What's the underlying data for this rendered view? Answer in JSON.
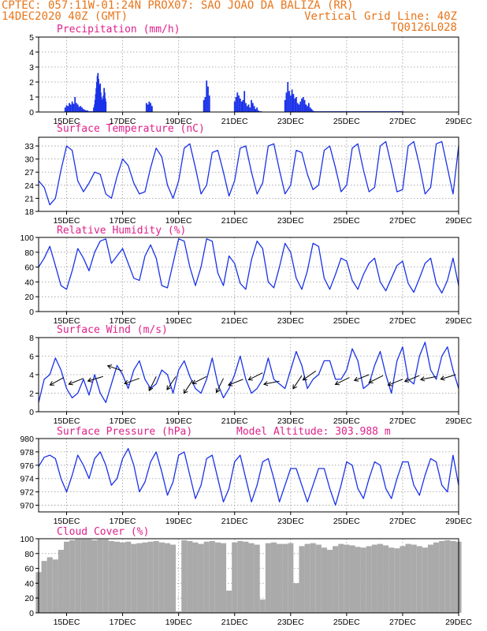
{
  "header": {
    "line1": "CPTEC:  057:11W-01:24N  PROX07: SAO JOAO DA BALIZA (RR)",
    "date": "14DEC2020 40Z (GMT)",
    "grid_note": "Vertical Grid Line: 40Z",
    "model": "TQ0126L028"
  },
  "colors": {
    "header": "#e8751a",
    "title": "#e0208a",
    "series": "#1a32e8",
    "cloud": "#aaaaaa",
    "grid": "#999999"
  },
  "x_axis": {
    "start_day": 14,
    "end_day": 29,
    "tick_days": [
      15,
      17,
      19,
      21,
      23,
      25,
      27,
      29
    ],
    "tick_labels": [
      "15DEC",
      "17DEC",
      "19DEC",
      "21DEC",
      "23DEC",
      "25DEC",
      "27DEC",
      "29DEC"
    ]
  },
  "chart_data": [
    {
      "id": "precip",
      "type": "bar",
      "title": "Precipitation (mm/h)",
      "ylim": [
        0,
        5
      ],
      "yticks": [
        0,
        1,
        2,
        3,
        4,
        5
      ],
      "x": [
        14.95,
        15.0,
        15.05,
        15.1,
        15.15,
        15.2,
        15.25,
        15.3,
        15.35,
        15.4,
        15.45,
        15.5,
        15.55,
        15.6,
        15.65,
        15.7,
        15.75,
        15.8,
        15.85,
        15.9,
        15.95,
        15.97,
        16.0,
        16.02,
        16.04,
        16.06,
        16.08,
        16.1,
        16.12,
        16.14,
        16.16,
        16.18,
        16.2,
        16.22,
        16.24,
        16.26,
        16.28,
        16.3,
        16.32,
        16.34,
        16.36,
        16.38,
        16.4,
        17.85,
        17.9,
        17.95,
        18.0,
        18.05,
        19.9,
        19.95,
        20.0,
        20.05,
        20.1,
        21.0,
        21.05,
        21.1,
        21.15,
        21.2,
        21.25,
        21.3,
        21.35,
        21.4,
        21.45,
        21.5,
        21.55,
        21.6,
        21.65,
        21.7,
        21.75,
        21.8,
        21.85,
        21.9,
        21.95,
        22.0,
        22.8,
        22.85,
        22.9,
        22.95,
        23.0,
        23.05,
        23.1,
        23.15,
        23.2,
        23.25,
        23.3,
        23.35,
        23.4,
        23.45,
        23.5,
        23.55,
        23.6,
        23.65,
        23.7,
        23.75,
        23.8,
        23.85,
        23.9,
        23.95,
        24.0,
        24.05,
        24.1,
        24.15,
        24.2,
        24.25,
        24.3,
        24.35,
        24.4,
        24.45,
        24.5,
        24.55,
        24.6,
        24.65,
        24.7,
        24.75,
        24.8,
        24.85,
        24.9,
        24.95,
        25.0,
        25.05,
        25.1,
        25.15,
        25.2,
        25.25,
        25.3,
        25.35,
        25.4,
        25.45,
        25.5,
        25.55,
        25.6,
        25.65,
        25.7,
        25.75,
        25.8,
        25.85,
        25.9,
        25.95,
        26.0,
        26.05,
        26.1,
        26.15,
        26.2,
        26.25,
        26.3,
        26.35,
        26.4,
        26.45,
        26.5,
        26.55,
        26.6,
        26.65,
        26.7,
        26.75,
        26.8,
        26.85,
        26.9,
        26.95,
        27.0
      ],
      "values": [
        0.3,
        0.45,
        0.4,
        0.6,
        0.5,
        0.7,
        0.55,
        1.0,
        0.6,
        0.5,
        0.35,
        0.4,
        0.3,
        0.2,
        0.15,
        0.1,
        0.1,
        0.05,
        0.05,
        0.05,
        0.05,
        0.3,
        0.5,
        0.8,
        1.2,
        1.6,
        2.0,
        2.4,
        2.6,
        2.2,
        1.8,
        1.5,
        1.9,
        1.3,
        1.0,
        0.8,
        0.6,
        0.9,
        1.1,
        1.6,
        1.3,
        0.9,
        0.7,
        0.6,
        0.5,
        0.7,
        0.6,
        0.4,
        0.8,
        1.0,
        2.1,
        1.7,
        1.1,
        0.7,
        1.0,
        1.3,
        1.1,
        0.9,
        0.7,
        0.8,
        1.4,
        0.6,
        0.4,
        0.5,
        0.3,
        0.8,
        0.6,
        0.4,
        0.2,
        0.3,
        0.1,
        0.05,
        0.05,
        0.0,
        0.8,
        1.3,
        2.0,
        1.4,
        1.1,
        1.5,
        1.2,
        0.9,
        1.0,
        0.6,
        0.5,
        0.7,
        0.9,
        1.0,
        0.8,
        0.5,
        0.4,
        0.6,
        0.3,
        0.2,
        0.1,
        0.05,
        0.05,
        0.05,
        0.05,
        0.05,
        0.05,
        0.05,
        0.05,
        0.05,
        0.05,
        0.05,
        0.05,
        0.05,
        0.05,
        0.05,
        0.05,
        0.05,
        0.05,
        0.05,
        0.05,
        0.05,
        0.05,
        0.05,
        0.05,
        0.05,
        0.05,
        0.05,
        0.05,
        0.05,
        0.05,
        0.05,
        0.05,
        0.05,
        0.05,
        0.05,
        0.05,
        0.05,
        0.05,
        0.05,
        0.05,
        0.05,
        0.05,
        0.05,
        0.05,
        0.05,
        0.05,
        0.05,
        0.05,
        0.05,
        0.05,
        0.05,
        0.05,
        0.05,
        0.05,
        0.05,
        0.05,
        0.05,
        0.05,
        0.05,
        0.05,
        0.05,
        0.05,
        0.05,
        0.05
      ]
    },
    {
      "id": "temperature",
      "type": "line",
      "title": "Surface Temperature (nC)",
      "ylim": [
        18,
        35
      ],
      "yticks": [
        18,
        21,
        24,
        27,
        30,
        33
      ],
      "x": [
        14.0,
        14.2,
        14.4,
        14.6,
        14.8,
        15.0,
        15.2,
        15.4,
        15.6,
        15.8,
        16.0,
        16.2,
        16.4,
        16.6,
        16.8,
        17.0,
        17.2,
        17.4,
        17.6,
        17.8,
        18.0,
        18.2,
        18.4,
        18.6,
        18.8,
        19.0,
        19.2,
        19.4,
        19.6,
        19.8,
        20.0,
        20.2,
        20.4,
        20.6,
        20.8,
        21.0,
        21.2,
        21.4,
        21.6,
        21.8,
        22.0,
        22.2,
        22.4,
        22.6,
        22.8,
        23.0,
        23.2,
        23.4,
        23.6,
        23.8,
        24.0,
        24.2,
        24.4,
        24.6,
        24.8,
        25.0,
        25.2,
        25.4,
        25.6,
        25.8,
        26.0,
        26.2,
        26.4,
        26.6,
        26.8,
        27.0,
        27.2,
        27.4,
        27.6,
        27.8,
        28.0,
        28.2,
        28.4,
        28.6,
        28.8,
        29.0
      ],
      "values": [
        25.0,
        23.5,
        19.5,
        21.0,
        27.5,
        33.0,
        32.0,
        25.0,
        22.5,
        24.5,
        27.0,
        26.5,
        22.0,
        21.0,
        26.0,
        30.0,
        28.5,
        24.5,
        22.0,
        22.5,
        28.0,
        32.5,
        30.5,
        24.0,
        21.0,
        25.0,
        32.5,
        33.5,
        28.0,
        22.0,
        24.0,
        31.5,
        32.0,
        27.0,
        21.5,
        25.0,
        32.5,
        33.0,
        27.0,
        22.0,
        24.5,
        33.0,
        33.5,
        27.5,
        22.0,
        24.0,
        32.0,
        31.5,
        26.5,
        23.0,
        24.0,
        32.0,
        33.0,
        28.0,
        22.5,
        24.0,
        32.5,
        33.5,
        27.5,
        22.5,
        23.5,
        33.0,
        34.0,
        28.5,
        22.5,
        23.0,
        33.0,
        34.0,
        28.5,
        22.0,
        23.5,
        33.5,
        34.0,
        28.0,
        22.0,
        33.0
      ]
    },
    {
      "id": "humidity",
      "type": "line",
      "title": "Relative Humidity (%)",
      "ylim": [
        0,
        100
      ],
      "yticks": [
        0,
        20,
        40,
        60,
        80,
        100
      ],
      "x": [
        14.0,
        14.2,
        14.4,
        14.6,
        14.8,
        15.0,
        15.2,
        15.4,
        15.6,
        15.8,
        16.0,
        16.2,
        16.4,
        16.6,
        16.8,
        17.0,
        17.2,
        17.4,
        17.6,
        17.8,
        18.0,
        18.2,
        18.4,
        18.6,
        18.8,
        19.0,
        19.2,
        19.4,
        19.6,
        19.8,
        20.0,
        20.2,
        20.4,
        20.6,
        20.8,
        21.0,
        21.2,
        21.4,
        21.6,
        21.8,
        22.0,
        22.2,
        22.4,
        22.6,
        22.8,
        23.0,
        23.2,
        23.4,
        23.6,
        23.8,
        24.0,
        24.2,
        24.4,
        24.6,
        24.8,
        25.0,
        25.2,
        25.4,
        25.6,
        25.8,
        26.0,
        26.2,
        26.4,
        26.6,
        26.8,
        27.0,
        27.2,
        27.4,
        27.6,
        27.8,
        28.0,
        28.2,
        28.4,
        28.6,
        28.8,
        29.0
      ],
      "values": [
        60.0,
        72.0,
        88.0,
        62.0,
        35.0,
        30.0,
        55.0,
        85.0,
        72.0,
        55.0,
        80.0,
        95.0,
        98.0,
        65.0,
        75.0,
        85.0,
        65.0,
        45.0,
        42.0,
        75.0,
        90.0,
        72.0,
        35.0,
        32.0,
        65.0,
        98.0,
        95.0,
        60.0,
        35.0,
        60.0,
        98.0,
        95.0,
        52.0,
        35.0,
        75.0,
        65.0,
        38.0,
        30.0,
        70.0,
        95.0,
        85.0,
        40.0,
        32.0,
        60.0,
        92.0,
        80.0,
        45.0,
        30.0,
        55.0,
        92.0,
        88.0,
        45.0,
        30.0,
        50.0,
        72.0,
        68.0,
        42.0,
        30.0,
        50.0,
        65.0,
        72.0,
        40.0,
        28.0,
        45.0,
        62.0,
        68.0,
        38.0,
        26.0,
        45.0,
        65.0,
        72.0,
        38.0,
        25.0,
        42.0,
        72.0,
        35.0
      ]
    },
    {
      "id": "wind",
      "type": "line",
      "title": "Surface Wind (m/s)",
      "ylim": [
        0,
        8
      ],
      "yticks": [
        0,
        2,
        4,
        6,
        8
      ],
      "x": [
        14.0,
        14.2,
        14.4,
        14.6,
        14.8,
        15.0,
        15.2,
        15.4,
        15.6,
        15.8,
        16.0,
        16.2,
        16.4,
        16.6,
        16.8,
        17.0,
        17.2,
        17.4,
        17.6,
        17.8,
        18.0,
        18.2,
        18.4,
        18.6,
        18.8,
        19.0,
        19.2,
        19.4,
        19.6,
        19.8,
        20.0,
        20.2,
        20.4,
        20.6,
        20.8,
        21.0,
        21.2,
        21.4,
        21.6,
        21.8,
        22.0,
        22.2,
        22.4,
        22.6,
        22.8,
        23.0,
        23.2,
        23.4,
        23.6,
        23.8,
        24.0,
        24.2,
        24.4,
        24.6,
        24.8,
        25.0,
        25.2,
        25.4,
        25.6,
        25.8,
        26.0,
        26.2,
        26.4,
        26.6,
        26.8,
        27.0,
        27.2,
        27.4,
        27.6,
        27.8,
        28.0,
        28.2,
        28.4,
        28.6,
        28.8,
        29.0
      ],
      "values": [
        1.0,
        3.5,
        4.0,
        5.8,
        4.5,
        2.5,
        1.5,
        2.0,
        3.5,
        1.8,
        4.0,
        2.0,
        1.0,
        3.0,
        5.0,
        4.0,
        2.5,
        4.5,
        5.5,
        3.5,
        2.5,
        3.0,
        4.5,
        4.0,
        2.0,
        4.5,
        5.5,
        3.8,
        2.5,
        2.0,
        3.5,
        5.8,
        3.0,
        1.5,
        2.5,
        4.0,
        6.0,
        3.5,
        2.0,
        2.5,
        3.5,
        5.8,
        3.5,
        3.0,
        2.5,
        4.5,
        6.5,
        5.0,
        2.5,
        3.5,
        4.0,
        5.5,
        5.5,
        3.5,
        3.5,
        4.5,
        6.8,
        5.5,
        2.5,
        3.0,
        5.0,
        6.5,
        4.0,
        2.0,
        5.5,
        7.0,
        3.5,
        3.0,
        6.0,
        7.5,
        4.5,
        3.5,
        6.0,
        7.0,
        4.5,
        2.5
      ],
      "arrows": [
        {
          "x": 14.9,
          "y": 3.7,
          "dx": -1,
          "dy": -0.55
        },
        {
          "x": 15.6,
          "y": 3.6,
          "dx": -1,
          "dy": -0.4
        },
        {
          "x": 16.3,
          "y": 3.8,
          "dx": -1,
          "dy": -0.3
        },
        {
          "x": 17.0,
          "y": 4.4,
          "dx": -1,
          "dy": 0.35
        },
        {
          "x": 17.6,
          "y": 3.6,
          "dx": -1,
          "dy": -0.35
        },
        {
          "x": 18.2,
          "y": 3.8,
          "dx": -0.5,
          "dy": -1
        },
        {
          "x": 18.9,
          "y": 3.8,
          "dx": -0.6,
          "dy": -0.9
        },
        {
          "x": 19.5,
          "y": 3.4,
          "dx": -0.6,
          "dy": -0.9
        },
        {
          "x": 20.0,
          "y": 3.8,
          "dx": -1,
          "dy": -0.5
        },
        {
          "x": 20.6,
          "y": 3.6,
          "dx": -0.5,
          "dy": -1
        },
        {
          "x": 21.3,
          "y": 3.5,
          "dx": -1,
          "dy": -0.4
        },
        {
          "x": 22.0,
          "y": 4.2,
          "dx": -1,
          "dy": -0.5
        },
        {
          "x": 22.6,
          "y": 3.3,
          "dx": -1,
          "dy": -0.2
        },
        {
          "x": 23.4,
          "y": 3.9,
          "dx": -0.6,
          "dy": -0.9
        },
        {
          "x": 23.9,
          "y": 4.4,
          "dx": -1,
          "dy": -0.7
        },
        {
          "x": 25.1,
          "y": 3.7,
          "dx": -1,
          "dy": -0.5
        },
        {
          "x": 25.8,
          "y": 4.0,
          "dx": -1,
          "dy": -0.4
        },
        {
          "x": 26.3,
          "y": 3.9,
          "dx": -1,
          "dy": -0.5
        },
        {
          "x": 27.0,
          "y": 3.5,
          "dx": -1,
          "dy": -0.4
        },
        {
          "x": 27.6,
          "y": 3.9,
          "dx": -1,
          "dy": -0.4
        },
        {
          "x": 28.2,
          "y": 3.8,
          "dx": -1,
          "dy": -0.2
        },
        {
          "x": 28.9,
          "y": 4.0,
          "dx": -1,
          "dy": -0.3
        }
      ]
    },
    {
      "id": "pressure",
      "type": "line",
      "title": "Surface Pressure (hPa)",
      "subtitle": "Model Altitude: 303.988 m",
      "ylim": [
        969,
        980
      ],
      "yticks": [
        970,
        972,
        974,
        976,
        978,
        980
      ],
      "x": [
        14.0,
        14.2,
        14.4,
        14.6,
        14.8,
        15.0,
        15.2,
        15.4,
        15.6,
        15.8,
        16.0,
        16.2,
        16.4,
        16.6,
        16.8,
        17.0,
        17.2,
        17.4,
        17.6,
        17.8,
        18.0,
        18.2,
        18.4,
        18.6,
        18.8,
        19.0,
        19.2,
        19.4,
        19.6,
        19.8,
        20.0,
        20.2,
        20.4,
        20.6,
        20.8,
        21.0,
        21.2,
        21.4,
        21.6,
        21.8,
        22.0,
        22.2,
        22.4,
        22.6,
        22.8,
        23.0,
        23.2,
        23.4,
        23.6,
        23.8,
        24.0,
        24.2,
        24.4,
        24.6,
        24.8,
        25.0,
        25.2,
        25.4,
        25.6,
        25.8,
        26.0,
        26.2,
        26.4,
        26.6,
        26.8,
        27.0,
        27.2,
        27.4,
        27.6,
        27.8,
        28.0,
        28.2,
        28.4,
        28.6,
        28.8,
        29.0
      ],
      "values": [
        975.8,
        977.2,
        977.5,
        977.0,
        974.0,
        972.0,
        974.5,
        977.5,
        976.0,
        974.0,
        977.0,
        978.0,
        976.0,
        973.0,
        974.0,
        977.0,
        978.5,
        976.0,
        972.0,
        973.5,
        976.5,
        978.0,
        975.0,
        971.5,
        973.5,
        977.5,
        978.0,
        974.5,
        971.0,
        973.0,
        977.0,
        977.5,
        974.0,
        970.5,
        972.5,
        976.5,
        977.5,
        974.0,
        970.5,
        973.0,
        976.5,
        977.0,
        974.0,
        970.5,
        973.0,
        975.5,
        975.5,
        973.0,
        970.5,
        973.0,
        975.5,
        975.5,
        972.5,
        970.0,
        973.0,
        976.5,
        976.0,
        972.5,
        971.0,
        974.0,
        976.5,
        976.0,
        972.5,
        971.0,
        974.0,
        976.5,
        976.5,
        973.0,
        971.5,
        974.5,
        977.0,
        976.5,
        973.0,
        972.0,
        977.5,
        973.0
      ]
    },
    {
      "id": "cloud",
      "type": "area",
      "title": "Cloud Cover (%)",
      "ylim": [
        0,
        100
      ],
      "yticks": [
        0,
        20,
        40,
        60,
        80,
        100
      ],
      "x": [
        14.0,
        14.2,
        14.4,
        14.6,
        14.8,
        15.0,
        15.2,
        15.4,
        15.6,
        15.8,
        16.0,
        16.2,
        16.4,
        16.6,
        16.8,
        17.0,
        17.2,
        17.4,
        17.6,
        17.8,
        18.0,
        18.2,
        18.4,
        18.6,
        18.8,
        19.0,
        19.2,
        19.4,
        19.6,
        19.8,
        20.0,
        20.2,
        20.4,
        20.6,
        20.8,
        21.0,
        21.2,
        21.4,
        21.6,
        21.8,
        22.0,
        22.2,
        22.4,
        22.6,
        22.8,
        23.0,
        23.2,
        23.4,
        23.6,
        23.8,
        24.0,
        24.2,
        24.4,
        24.6,
        24.8,
        25.0,
        25.2,
        25.4,
        25.6,
        25.8,
        26.0,
        26.2,
        26.4,
        26.6,
        26.8,
        27.0,
        27.2,
        27.4,
        27.6,
        27.8,
        28.0,
        28.2,
        28.4,
        28.6,
        28.8,
        29.0
      ],
      "values": [
        55.0,
        70.0,
        75.0,
        72.0,
        85.0,
        96.0,
        98.0,
        99.0,
        99.0,
        99.0,
        98.0,
        99.0,
        99.0,
        97.0,
        96.0,
        95.0,
        96.0,
        93.0,
        94.0,
        95.0,
        96.0,
        97.0,
        95.0,
        94.0,
        92.0,
        2.0,
        98.0,
        97.0,
        95.0,
        93.0,
        96.0,
        97.0,
        95.0,
        94.0,
        30.0,
        95.0,
        97.0,
        96.0,
        94.0,
        92.0,
        18.0,
        94.0,
        95.0,
        93.0,
        93.0,
        94.0,
        40.0,
        90.0,
        93.0,
        94.0,
        92.0,
        88.0,
        85.0,
        90.0,
        93.0,
        92.0,
        91.0,
        89.0,
        88.0,
        90.0,
        92.0,
        93.0,
        91.0,
        88.0,
        87.0,
        90.0,
        93.0,
        92.0,
        90.0,
        88.0,
        92.0,
        95.0,
        97.0,
        98.0,
        97.0,
        96.0
      ]
    }
  ]
}
